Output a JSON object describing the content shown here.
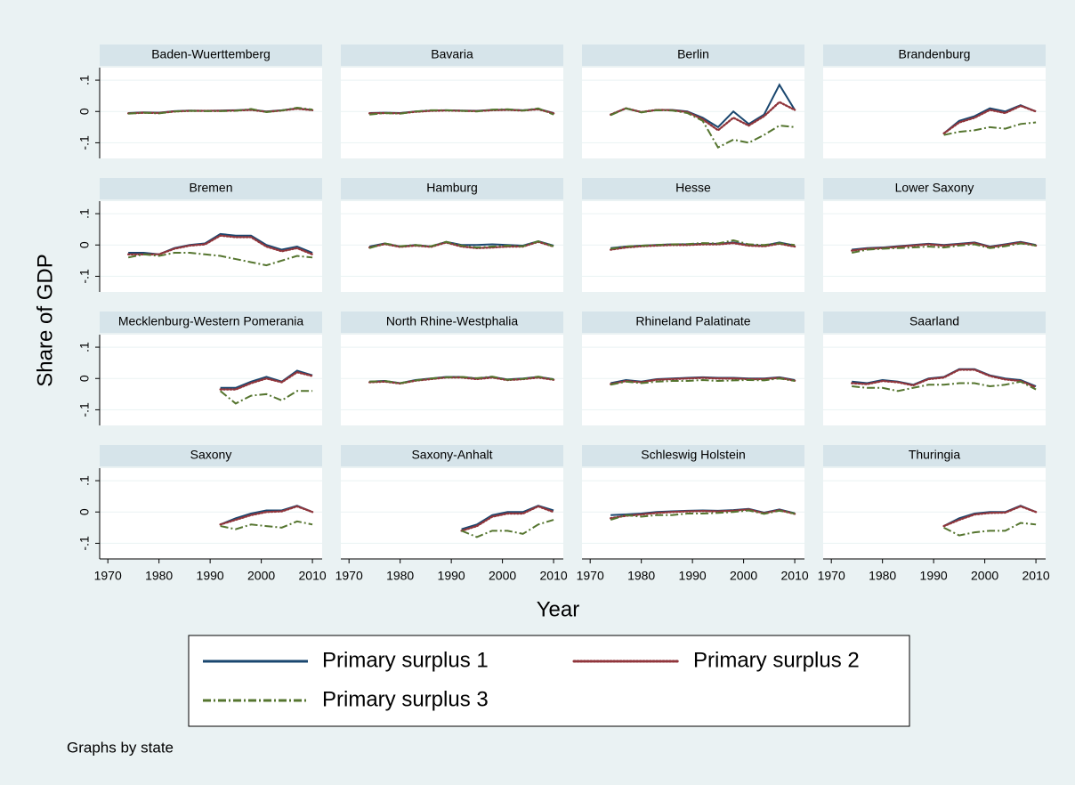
{
  "chart_data": {
    "type": "line",
    "x_label": "Year",
    "y_label": "Share of GDP",
    "note": "Graphs by state",
    "x": [
      1974,
      1977,
      1980,
      1983,
      1986,
      1989,
      1992,
      1995,
      1998,
      2001,
      2004,
      2007,
      2010
    ],
    "xlim": [
      1968.4,
      2011.9
    ],
    "xticks": [
      1970,
      1980,
      1990,
      2000,
      2010
    ],
    "ylim": [
      -0.15,
      0.14
    ],
    "yticks": [
      {
        "value": -0.1,
        "label": "-.1"
      },
      {
        "value": 0,
        "label": "0"
      },
      {
        "value": 0.1,
        "label": ".1"
      }
    ],
    "grid": true,
    "series": [
      {
        "name": "Primary surplus 1",
        "color": "#1a476f",
        "style": "solid"
      },
      {
        "name": "Primary surplus 2",
        "color": "#90353b",
        "style": "dotted"
      },
      {
        "name": "Primary surplus 3",
        "color": "#55752f",
        "style": "dashdot"
      }
    ],
    "facets": [
      {
        "title": "Baden-Wuerttemberg",
        "values": [
          [
            -0.005,
            -0.003,
            -0.004,
            0.001,
            0.003,
            0.002,
            0.003,
            0.004,
            0.006,
            0.0,
            0.004,
            0.01,
            0.005
          ],
          [
            -0.006,
            -0.004,
            -0.005,
            0.0,
            0.002,
            0.002,
            0.002,
            0.003,
            0.005,
            -0.001,
            0.003,
            0.009,
            0.004
          ],
          [
            -0.007,
            -0.004,
            -0.006,
            0.0,
            0.002,
            0.001,
            0.001,
            0.002,
            0.008,
            -0.002,
            0.003,
            0.012,
            0.006
          ]
        ]
      },
      {
        "title": "Bavaria",
        "values": [
          [
            -0.005,
            -0.004,
            -0.005,
            0.0,
            0.003,
            0.004,
            0.003,
            0.002,
            0.005,
            0.006,
            0.004,
            0.008,
            -0.005
          ],
          [
            -0.006,
            -0.005,
            -0.006,
            -0.001,
            0.002,
            0.003,
            0.002,
            0.001,
            0.004,
            0.005,
            0.003,
            0.007,
            -0.006
          ],
          [
            -0.01,
            -0.005,
            -0.007,
            0.0,
            0.004,
            0.004,
            0.002,
            0.0,
            0.006,
            0.007,
            0.003,
            0.01,
            -0.01
          ]
        ]
      },
      {
        "title": "Berlin",
        "values": [
          [
            -0.01,
            0.01,
            -0.002,
            0.005,
            0.005,
            0.0,
            -0.02,
            -0.05,
            0.0,
            -0.04,
            -0.01,
            0.085,
            0.005
          ],
          [
            -0.01,
            0.01,
            -0.002,
            0.005,
            0.004,
            -0.002,
            -0.025,
            -0.06,
            -0.02,
            -0.045,
            -0.015,
            0.03,
            0.005
          ],
          [
            -0.012,
            0.01,
            -0.003,
            0.004,
            0.003,
            -0.005,
            -0.03,
            -0.115,
            -0.09,
            -0.1,
            -0.075,
            -0.045,
            -0.05
          ]
        ]
      },
      {
        "title": "Brandenburg",
        "values": [
          [
            null,
            null,
            null,
            null,
            null,
            null,
            -0.07,
            -0.03,
            -0.015,
            0.01,
            0.0,
            0.02,
            0.0
          ],
          [
            null,
            null,
            null,
            null,
            null,
            null,
            -0.07,
            -0.035,
            -0.02,
            0.005,
            -0.005,
            0.018,
            0.0
          ],
          [
            null,
            null,
            null,
            null,
            null,
            null,
            -0.075,
            -0.065,
            -0.06,
            -0.05,
            -0.055,
            -0.04,
            -0.035
          ]
        ]
      },
      {
        "title": "Bremen",
        "values": [
          [
            -0.025,
            -0.025,
            -0.03,
            -0.01,
            0.0,
            0.005,
            0.035,
            0.03,
            0.03,
            0.0,
            -0.015,
            -0.005,
            -0.025
          ],
          [
            -0.03,
            -0.03,
            -0.03,
            -0.012,
            -0.002,
            0.002,
            0.03,
            0.025,
            0.025,
            -0.005,
            -0.02,
            -0.01,
            -0.03
          ],
          [
            -0.04,
            -0.03,
            -0.035,
            -0.025,
            -0.025,
            -0.03,
            -0.035,
            -0.045,
            -0.055,
            -0.065,
            -0.05,
            -0.035,
            -0.04
          ]
        ]
      },
      {
        "title": "Hamburg",
        "values": [
          [
            -0.005,
            0.005,
            -0.005,
            0.0,
            -0.005,
            0.01,
            0.0,
            0.0,
            0.002,
            0.0,
            -0.002,
            0.012,
            -0.002
          ],
          [
            -0.008,
            0.003,
            -0.006,
            -0.002,
            -0.006,
            0.008,
            -0.005,
            -0.01,
            -0.008,
            -0.005,
            -0.005,
            0.01,
            -0.005
          ],
          [
            -0.01,
            0.005,
            -0.004,
            0.0,
            -0.004,
            0.01,
            -0.002,
            -0.008,
            -0.005,
            -0.002,
            -0.004,
            0.012,
            -0.004
          ]
        ]
      },
      {
        "title": "Hesse",
        "values": [
          [
            -0.01,
            -0.005,
            -0.002,
            0.0,
            0.002,
            0.002,
            0.004,
            0.004,
            0.008,
            0.0,
            -0.002,
            0.008,
            -0.002
          ],
          [
            -0.015,
            -0.008,
            -0.004,
            -0.002,
            0.0,
            0.0,
            0.002,
            0.002,
            0.006,
            -0.002,
            -0.004,
            0.004,
            -0.005
          ],
          [
            -0.012,
            -0.005,
            -0.002,
            0.0,
            0.002,
            0.003,
            0.006,
            0.005,
            0.015,
            0.002,
            0.0,
            0.006,
            0.0
          ]
        ]
      },
      {
        "title": "Lower Saxony",
        "values": [
          [
            -0.015,
            -0.01,
            -0.008,
            -0.004,
            0.0,
            0.004,
            0.0,
            0.004,
            0.008,
            -0.005,
            0.002,
            0.01,
            0.0
          ],
          [
            -0.018,
            -0.012,
            -0.01,
            -0.006,
            -0.002,
            0.002,
            -0.002,
            0.002,
            0.006,
            -0.007,
            0.0,
            0.008,
            -0.002
          ],
          [
            -0.025,
            -0.015,
            -0.012,
            -0.01,
            -0.008,
            -0.005,
            -0.008,
            -0.002,
            0.002,
            -0.01,
            -0.004,
            0.005,
            -0.002
          ]
        ]
      },
      {
        "title": "Mecklenburg-Western Pomerania",
        "values": [
          [
            null,
            null,
            null,
            null,
            null,
            null,
            -0.03,
            -0.03,
            -0.01,
            0.005,
            -0.01,
            0.025,
            0.01
          ],
          [
            null,
            null,
            null,
            null,
            null,
            null,
            -0.035,
            -0.035,
            -0.015,
            0.0,
            -0.012,
            0.02,
            0.008
          ],
          [
            null,
            null,
            null,
            null,
            null,
            null,
            -0.04,
            -0.08,
            -0.055,
            -0.05,
            -0.07,
            -0.04,
            -0.04
          ]
        ]
      },
      {
        "title": "North Rhine-Westphalia",
        "values": [
          [
            -0.01,
            -0.008,
            -0.015,
            -0.005,
            0.0,
            0.005,
            0.005,
            0.0,
            0.005,
            -0.003,
            0.0,
            0.005,
            -0.002
          ],
          [
            -0.012,
            -0.01,
            -0.016,
            -0.007,
            -0.002,
            0.003,
            0.003,
            -0.002,
            0.003,
            -0.005,
            -0.002,
            0.003,
            -0.004
          ],
          [
            -0.01,
            -0.008,
            -0.015,
            -0.006,
            0.0,
            0.004,
            0.005,
            0.001,
            0.006,
            -0.004,
            -0.001,
            0.006,
            -0.003
          ]
        ]
      },
      {
        "title": "Rhineland Palatinate",
        "values": [
          [
            -0.015,
            -0.005,
            -0.01,
            -0.002,
            0.0,
            0.002,
            0.004,
            0.002,
            0.002,
            0.0,
            0.0,
            0.004,
            -0.005
          ],
          [
            -0.018,
            -0.008,
            -0.012,
            -0.004,
            -0.002,
            0.0,
            0.002,
            0.0,
            0.0,
            -0.002,
            -0.002,
            0.002,
            -0.007
          ],
          [
            -0.02,
            -0.01,
            -0.015,
            -0.01,
            -0.008,
            -0.008,
            -0.005,
            -0.008,
            -0.006,
            -0.005,
            -0.006,
            0.0,
            -0.008
          ]
        ]
      },
      {
        "title": "Saarland",
        "values": [
          [
            -0.01,
            -0.015,
            -0.005,
            -0.01,
            -0.02,
            0.0,
            0.005,
            0.03,
            0.03,
            0.01,
            0.0,
            -0.005,
            -0.025
          ],
          [
            -0.015,
            -0.018,
            -0.008,
            -0.012,
            -0.022,
            -0.002,
            0.003,
            0.028,
            0.028,
            0.008,
            -0.003,
            -0.008,
            -0.028
          ],
          [
            -0.025,
            -0.03,
            -0.03,
            -0.04,
            -0.03,
            -0.02,
            -0.02,
            -0.015,
            -0.015,
            -0.025,
            -0.02,
            -0.01,
            -0.035
          ]
        ]
      },
      {
        "title": "Saxony",
        "values": [
          [
            null,
            null,
            null,
            null,
            null,
            null,
            -0.04,
            -0.02,
            -0.005,
            0.005,
            0.005,
            0.02,
            0.0
          ],
          [
            null,
            null,
            null,
            null,
            null,
            null,
            -0.04,
            -0.025,
            -0.01,
            0.0,
            0.002,
            0.018,
            0.0
          ],
          [
            null,
            null,
            null,
            null,
            null,
            null,
            -0.045,
            -0.055,
            -0.04,
            -0.045,
            -0.05,
            -0.03,
            -0.04
          ]
        ]
      },
      {
        "title": "Saxony-Anhalt",
        "values": [
          [
            null,
            null,
            null,
            null,
            null,
            null,
            -0.055,
            -0.04,
            -0.01,
            0.0,
            0.0,
            0.02,
            0.005
          ],
          [
            null,
            null,
            null,
            null,
            null,
            null,
            -0.06,
            -0.045,
            -0.015,
            -0.005,
            -0.005,
            0.018,
            0.0
          ],
          [
            null,
            null,
            null,
            null,
            null,
            null,
            -0.06,
            -0.08,
            -0.06,
            -0.06,
            -0.07,
            -0.04,
            -0.025
          ]
        ]
      },
      {
        "title": "Schleswig Holstein",
        "values": [
          [
            -0.01,
            -0.008,
            -0.005,
            0.0,
            0.002,
            0.004,
            0.005,
            0.004,
            0.006,
            0.01,
            -0.002,
            0.008,
            -0.004
          ],
          [
            -0.02,
            -0.012,
            -0.008,
            -0.003,
            0.0,
            0.002,
            0.003,
            0.002,
            0.004,
            0.008,
            -0.004,
            0.006,
            -0.006
          ],
          [
            -0.025,
            -0.01,
            -0.015,
            -0.01,
            -0.01,
            -0.005,
            -0.005,
            -0.003,
            0.0,
            0.005,
            -0.006,
            0.004,
            -0.005
          ]
        ]
      },
      {
        "title": "Thuringia",
        "values": [
          [
            null,
            null,
            null,
            null,
            null,
            null,
            -0.045,
            -0.02,
            -0.005,
            0.0,
            0.0,
            0.02,
            0.0
          ],
          [
            null,
            null,
            null,
            null,
            null,
            null,
            -0.045,
            -0.025,
            -0.008,
            -0.003,
            -0.002,
            0.018,
            0.0
          ],
          [
            null,
            null,
            null,
            null,
            null,
            null,
            -0.05,
            -0.075,
            -0.065,
            -0.06,
            -0.06,
            -0.035,
            -0.04
          ]
        ]
      }
    ]
  }
}
